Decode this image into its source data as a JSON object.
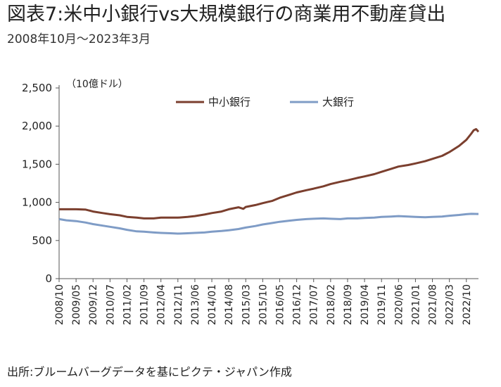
{
  "title": "図表7:米中小銀行vs大規模銀行の商業用不動産貸出",
  "subtitle": "2008年10月～2023年3月",
  "source": "出所:ブルームバーグデータを基にピクテ・ジャパン作成",
  "colors": {
    "small_banks": "#7B3F2E",
    "large_banks": "#7F9CC6",
    "axis": "#555555"
  },
  "chart_data": {
    "type": "line",
    "unit_label": "（10億ドル）",
    "ylim": [
      0,
      2500
    ],
    "y_ticks": [
      "2,500",
      "2,000",
      "1,500",
      "1,000",
      "500",
      "0"
    ],
    "y_tick_values": [
      2500,
      2000,
      1500,
      1000,
      500,
      0
    ],
    "x_range": [
      "2008/10",
      "2023/03"
    ],
    "x_ticks": [
      "2008/10",
      "2009/05",
      "2009/12",
      "2010/07",
      "2011/02",
      "2011/09",
      "2012/04",
      "2012/11",
      "2013/06",
      "2014/01",
      "2014/08",
      "2015/03",
      "2015/10",
      "2016/05",
      "2016/12",
      "2017/07",
      "2018/02",
      "2018/09",
      "2019/04",
      "2019/11",
      "2020/06",
      "2021/01",
      "2021/08",
      "2022/03",
      "2022/10"
    ],
    "legend_position": "top-center",
    "grid": false,
    "series": [
      {
        "name": "中小銀行",
        "color": "#7B3F2E",
        "points": [
          [
            "2008/10",
            910
          ],
          [
            "2009/01",
            910
          ],
          [
            "2009/05",
            910
          ],
          [
            "2009/09",
            905
          ],
          [
            "2009/12",
            880
          ],
          [
            "2010/04",
            860
          ],
          [
            "2010/07",
            845
          ],
          [
            "2010/11",
            830
          ],
          [
            "2011/02",
            810
          ],
          [
            "2011/06",
            800
          ],
          [
            "2011/09",
            790
          ],
          [
            "2012/01",
            790
          ],
          [
            "2012/04",
            800
          ],
          [
            "2012/08",
            800
          ],
          [
            "2012/11",
            800
          ],
          [
            "2013/03",
            810
          ],
          [
            "2013/06",
            820
          ],
          [
            "2013/10",
            840
          ],
          [
            "2014/01",
            860
          ],
          [
            "2014/05",
            880
          ],
          [
            "2014/08",
            910
          ],
          [
            "2014/12",
            935
          ],
          [
            "2015/02",
            915
          ],
          [
            "2015/03",
            940
          ],
          [
            "2015/07",
            965
          ],
          [
            "2015/10",
            990
          ],
          [
            "2016/02",
            1020
          ],
          [
            "2016/05",
            1060
          ],
          [
            "2016/09",
            1100
          ],
          [
            "2016/12",
            1130
          ],
          [
            "2017/04",
            1160
          ],
          [
            "2017/07",
            1180
          ],
          [
            "2017/11",
            1210
          ],
          [
            "2018/02",
            1240
          ],
          [
            "2018/06",
            1270
          ],
          [
            "2018/09",
            1290
          ],
          [
            "2019/01",
            1320
          ],
          [
            "2019/04",
            1340
          ],
          [
            "2019/08",
            1370
          ],
          [
            "2019/11",
            1400
          ],
          [
            "2020/03",
            1440
          ],
          [
            "2020/06",
            1470
          ],
          [
            "2020/10",
            1490
          ],
          [
            "2021/01",
            1510
          ],
          [
            "2021/05",
            1540
          ],
          [
            "2021/08",
            1570
          ],
          [
            "2021/12",
            1610
          ],
          [
            "2022/03",
            1660
          ],
          [
            "2022/07",
            1740
          ],
          [
            "2022/10",
            1820
          ],
          [
            "2022/12",
            1900
          ],
          [
            "2023/01",
            1945
          ],
          [
            "2023/02",
            1960
          ],
          [
            "2023/03",
            1925
          ]
        ]
      },
      {
        "name": "大銀行",
        "color": "#7F9CC6",
        "points": [
          [
            "2008/10",
            780
          ],
          [
            "2009/01",
            765
          ],
          [
            "2009/05",
            755
          ],
          [
            "2009/09",
            735
          ],
          [
            "2009/12",
            715
          ],
          [
            "2010/04",
            695
          ],
          [
            "2010/07",
            680
          ],
          [
            "2010/11",
            660
          ],
          [
            "2011/02",
            640
          ],
          [
            "2011/06",
            620
          ],
          [
            "2011/09",
            615
          ],
          [
            "2012/01",
            605
          ],
          [
            "2012/04",
            600
          ],
          [
            "2012/08",
            595
          ],
          [
            "2012/11",
            590
          ],
          [
            "2013/03",
            595
          ],
          [
            "2013/06",
            600
          ],
          [
            "2013/10",
            605
          ],
          [
            "2014/01",
            615
          ],
          [
            "2014/05",
            625
          ],
          [
            "2014/08",
            635
          ],
          [
            "2014/12",
            650
          ],
          [
            "2015/03",
            670
          ],
          [
            "2015/07",
            690
          ],
          [
            "2015/10",
            710
          ],
          [
            "2016/02",
            730
          ],
          [
            "2016/05",
            745
          ],
          [
            "2016/09",
            760
          ],
          [
            "2016/12",
            770
          ],
          [
            "2017/04",
            780
          ],
          [
            "2017/07",
            785
          ],
          [
            "2017/11",
            790
          ],
          [
            "2018/02",
            785
          ],
          [
            "2018/06",
            780
          ],
          [
            "2018/09",
            790
          ],
          [
            "2019/01",
            790
          ],
          [
            "2019/04",
            795
          ],
          [
            "2019/08",
            800
          ],
          [
            "2019/11",
            810
          ],
          [
            "2020/03",
            815
          ],
          [
            "2020/06",
            820
          ],
          [
            "2020/10",
            815
          ],
          [
            "2021/01",
            810
          ],
          [
            "2021/05",
            805
          ],
          [
            "2021/08",
            810
          ],
          [
            "2021/12",
            815
          ],
          [
            "2022/03",
            825
          ],
          [
            "2022/07",
            835
          ],
          [
            "2022/10",
            845
          ],
          [
            "2022/12",
            850
          ],
          [
            "2023/03",
            848
          ]
        ]
      }
    ]
  }
}
